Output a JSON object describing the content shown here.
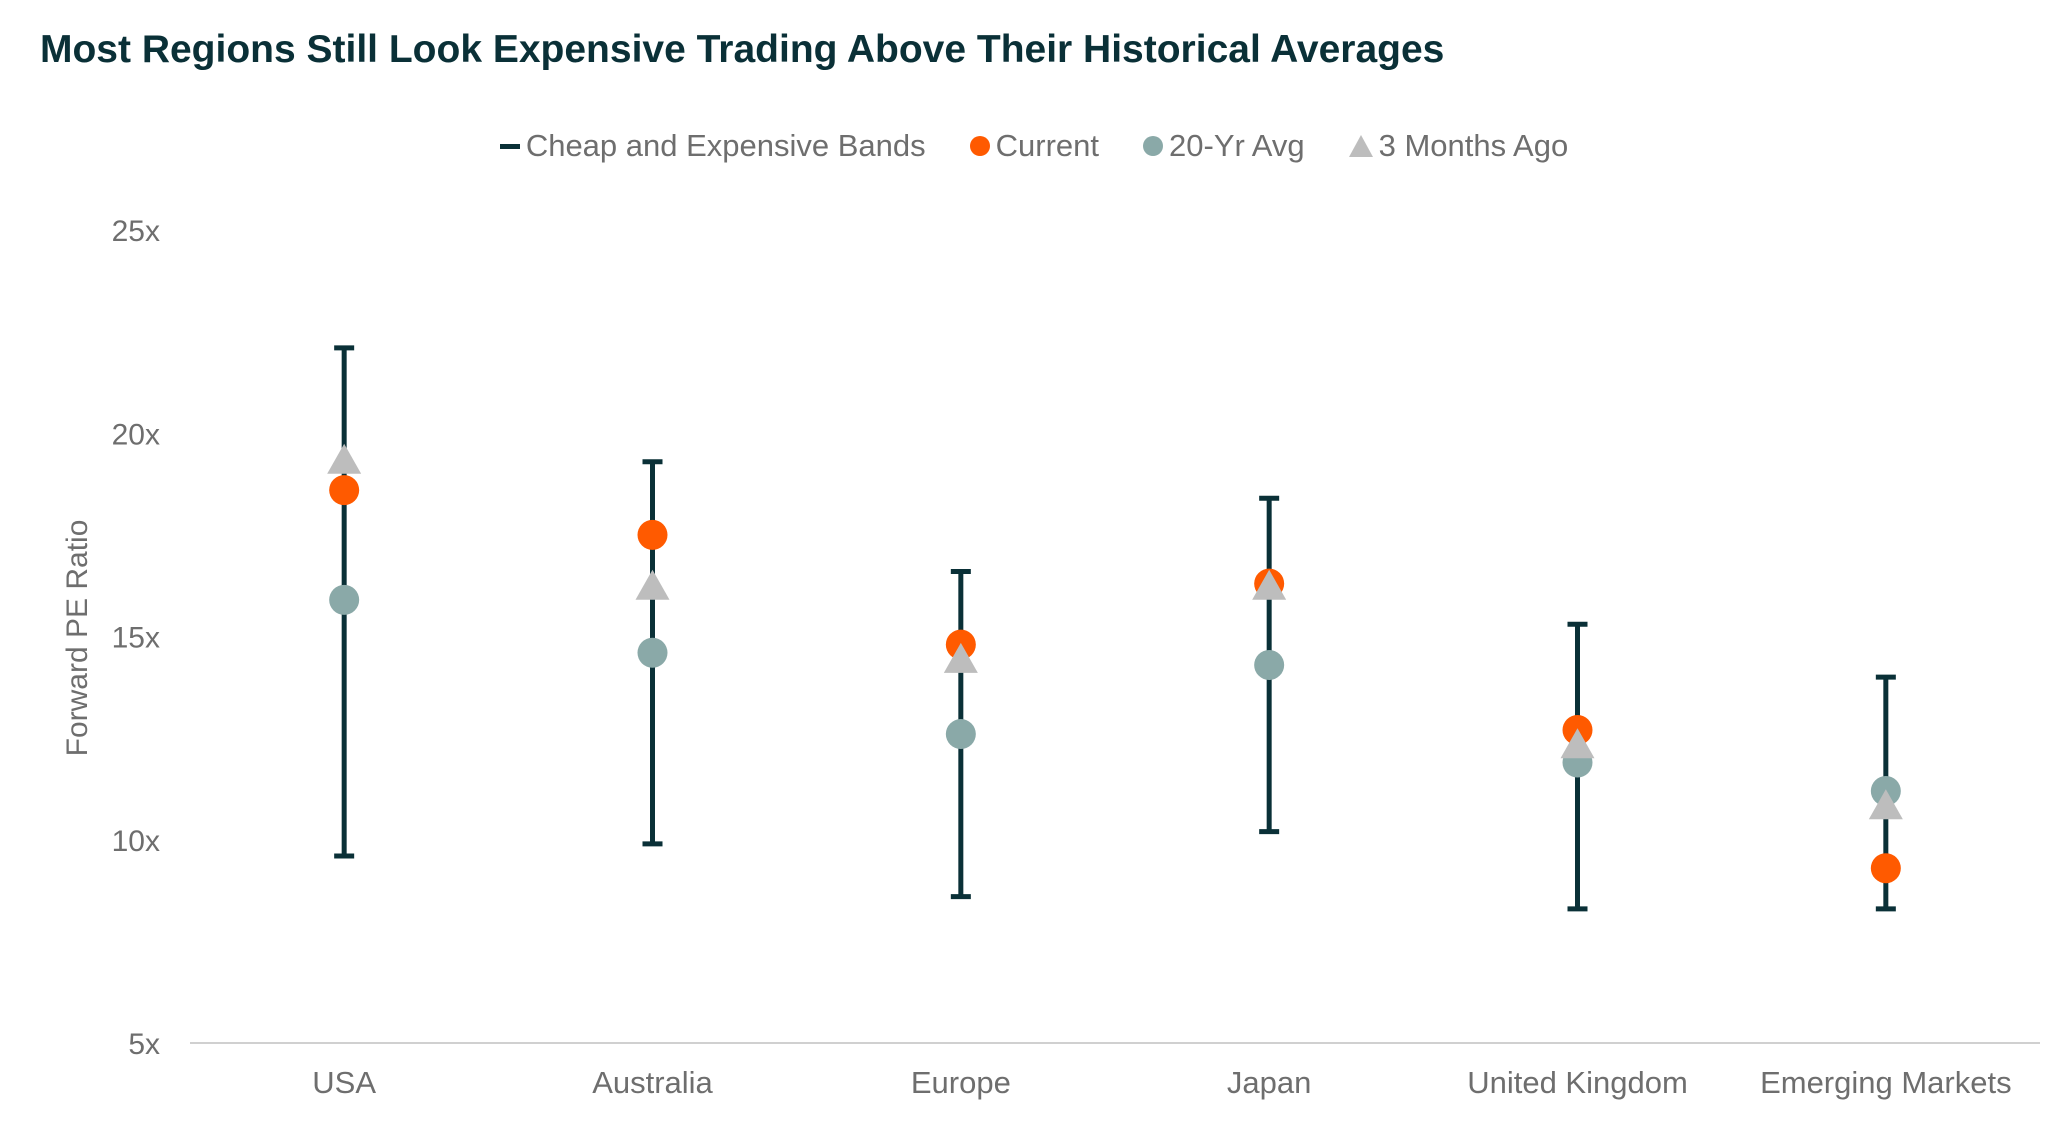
{
  "title": "Most Regions Still Look Expensive Trading Above Their Historical Averages",
  "legend": {
    "bands": "Cheap and Expensive Bands",
    "current": "Current",
    "avg": "20-Yr Avg",
    "ago": "3 Months Ago"
  },
  "colors": {
    "bands": "#0a3037",
    "current": "#ff5a00",
    "avg": "#8aa9a8",
    "ago": "#bdbdbd",
    "axis": "#d0d0d0",
    "text": "#6e6e6e",
    "title": "#0a3037"
  },
  "chart_data": {
    "type": "scatter",
    "title": "Most Regions Still Look Expensive Trading Above Their Historical Averages",
    "xlabel": "",
    "ylabel": "Forward PE Ratio",
    "ylim": [
      5,
      25
    ],
    "yticks": [
      5,
      10,
      15,
      20,
      25
    ],
    "ytick_labels": [
      "5x",
      "10x",
      "15x",
      "20x",
      "25x"
    ],
    "grid": false,
    "legend_position": "top-center",
    "categories": [
      "USA",
      "Australia",
      "Europe",
      "Japan",
      "United Kingdom",
      "Emerging Markets"
    ],
    "bands": [
      {
        "low": 9.6,
        "high": 22.1
      },
      {
        "low": 9.9,
        "high": 19.3
      },
      {
        "low": 8.6,
        "high": 16.6
      },
      {
        "low": 10.2,
        "high": 18.4
      },
      {
        "low": 8.3,
        "high": 15.3
      },
      {
        "low": 8.3,
        "high": 14.0
      }
    ],
    "series": [
      {
        "name": "Current",
        "values": [
          18.6,
          17.5,
          14.8,
          16.3,
          12.7,
          9.3
        ]
      },
      {
        "name": "20-Yr Avg",
        "values": [
          15.9,
          14.6,
          12.6,
          14.3,
          11.9,
          11.2
        ]
      },
      {
        "name": "3 Months Ago",
        "values": [
          19.3,
          16.2,
          14.4,
          16.2,
          12.3,
          10.8
        ]
      }
    ]
  }
}
